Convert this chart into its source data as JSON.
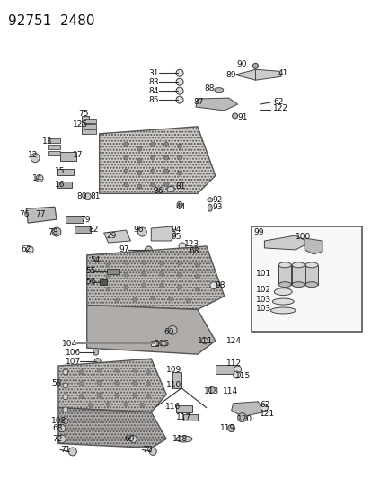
{
  "title": "92751  2480",
  "bg_color": "#ffffff",
  "title_fontsize": 11,
  "title_fontweight": "normal",
  "fig_width": 4.14,
  "fig_height": 5.33,
  "dpi": 100
}
